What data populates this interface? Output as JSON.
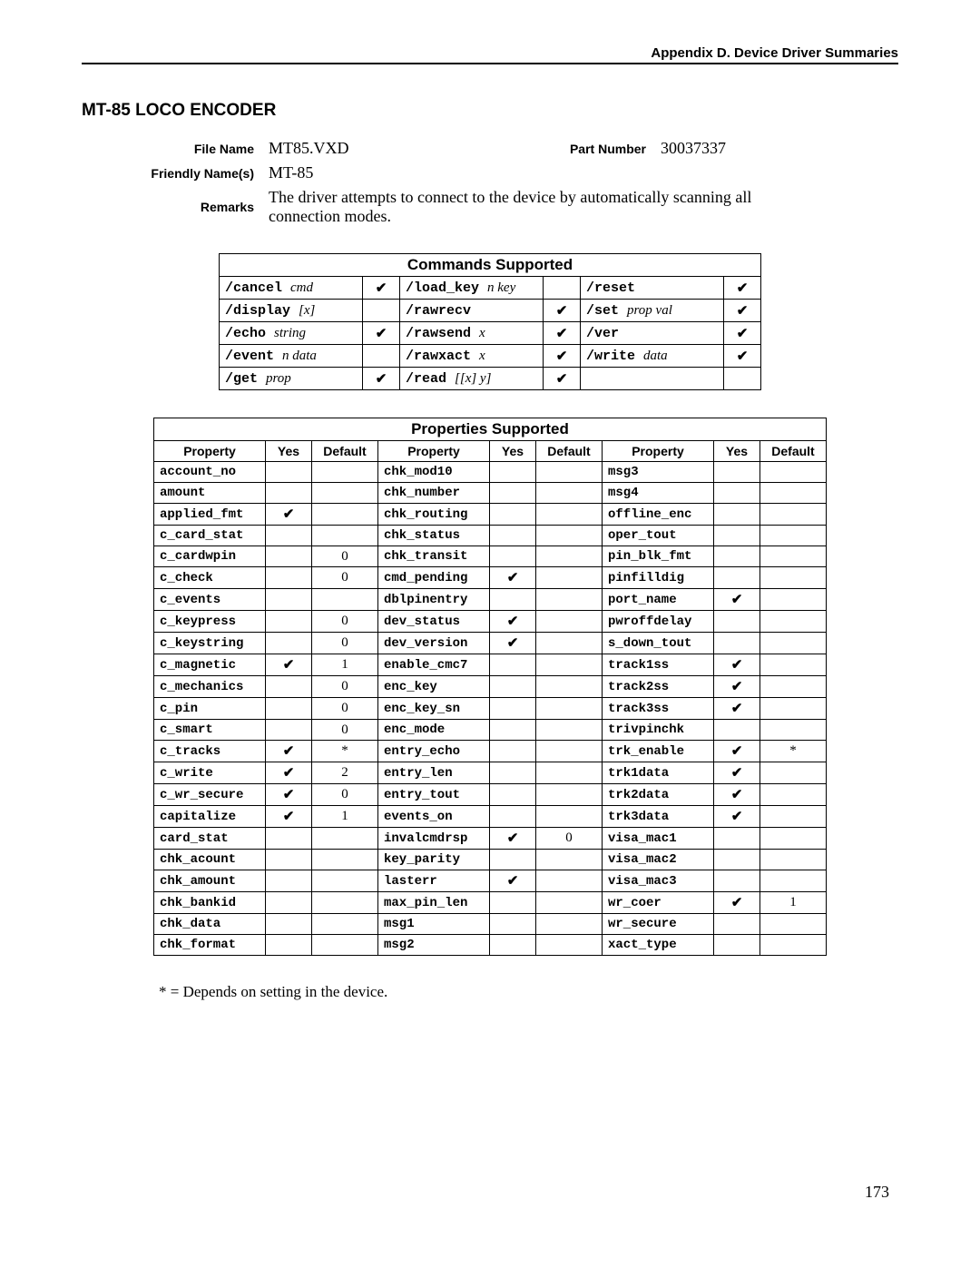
{
  "header": {
    "appendix": "Appendix D.  Device Driver Summaries"
  },
  "section_title": "MT-85 LOCO ENCODER",
  "info": {
    "file_name_label": "File Name",
    "file_name": "MT85.VXD",
    "part_number_label": "Part Number",
    "part_number": "30037337",
    "friendly_label": "Friendly Name(s)",
    "friendly": "MT-85",
    "remarks_label": "Remarks",
    "remarks": "The driver attempts to connect to the device by automatically scanning all connection modes."
  },
  "commands_table": {
    "title": "Commands Supported",
    "rows": [
      [
        {
          "cmd": "/cancel",
          "arg": "cmd",
          "chk": true
        },
        {
          "cmd": "/load_key",
          "arg": "n key",
          "chk": false
        },
        {
          "cmd": "/reset",
          "arg": "",
          "chk": true
        }
      ],
      [
        {
          "cmd": "/display",
          "arg": "[x]",
          "chk": false
        },
        {
          "cmd": "/rawrecv",
          "arg": "",
          "chk": true
        },
        {
          "cmd": "/set",
          "arg": "prop val",
          "chk": true
        }
      ],
      [
        {
          "cmd": "/echo",
          "arg": "string",
          "chk": true
        },
        {
          "cmd": "/rawsend",
          "arg": "x",
          "chk": true
        },
        {
          "cmd": "/ver",
          "arg": "",
          "chk": true
        }
      ],
      [
        {
          "cmd": "/event",
          "arg": "n data",
          "chk": false
        },
        {
          "cmd": "/rawxact",
          "arg": "x",
          "chk": true
        },
        {
          "cmd": "/write",
          "arg": "data",
          "chk": true
        }
      ],
      [
        {
          "cmd": "/get",
          "arg": "prop",
          "chk": true
        },
        {
          "cmd": "/read",
          "arg": "[[x] y]",
          "chk": true
        },
        {
          "cmd": "",
          "arg": "",
          "chk": null
        }
      ]
    ]
  },
  "props_table": {
    "title": "Properties Supported",
    "headers": {
      "prop": "Property",
      "yes": "Yes",
      "def": "Default"
    },
    "rows": [
      [
        {
          "p": "account_no",
          "y": false,
          "d": ""
        },
        {
          "p": "chk_mod10",
          "y": false,
          "d": ""
        },
        {
          "p": "msg3",
          "y": false,
          "d": ""
        }
      ],
      [
        {
          "p": "amount",
          "y": false,
          "d": ""
        },
        {
          "p": "chk_number",
          "y": false,
          "d": ""
        },
        {
          "p": "msg4",
          "y": false,
          "d": ""
        }
      ],
      [
        {
          "p": "applied_fmt",
          "y": true,
          "d": ""
        },
        {
          "p": "chk_routing",
          "y": false,
          "d": ""
        },
        {
          "p": "offline_enc",
          "y": false,
          "d": ""
        }
      ],
      [
        {
          "p": "c_card_stat",
          "y": false,
          "d": ""
        },
        {
          "p": "chk_status",
          "y": false,
          "d": ""
        },
        {
          "p": "oper_tout",
          "y": false,
          "d": ""
        }
      ],
      [
        {
          "p": "c_cardwpin",
          "y": false,
          "d": "0"
        },
        {
          "p": "chk_transit",
          "y": false,
          "d": ""
        },
        {
          "p": "pin_blk_fmt",
          "y": false,
          "d": ""
        }
      ],
      [
        {
          "p": "c_check",
          "y": false,
          "d": "0"
        },
        {
          "p": "cmd_pending",
          "y": true,
          "d": ""
        },
        {
          "p": "pinfilldig",
          "y": false,
          "d": ""
        }
      ],
      [
        {
          "p": "c_events",
          "y": false,
          "d": ""
        },
        {
          "p": "dblpinentry",
          "y": false,
          "d": ""
        },
        {
          "p": "port_name",
          "y": true,
          "d": ""
        }
      ],
      [
        {
          "p": "c_keypress",
          "y": false,
          "d": "0"
        },
        {
          "p": "dev_status",
          "y": true,
          "d": ""
        },
        {
          "p": "pwroffdelay",
          "y": false,
          "d": ""
        }
      ],
      [
        {
          "p": "c_keystring",
          "y": false,
          "d": "0"
        },
        {
          "p": "dev_version",
          "y": true,
          "d": ""
        },
        {
          "p": "s_down_tout",
          "y": false,
          "d": ""
        }
      ],
      [
        {
          "p": "c_magnetic",
          "y": true,
          "d": "1"
        },
        {
          "p": "enable_cmc7",
          "y": false,
          "d": ""
        },
        {
          "p": "track1ss",
          "y": true,
          "d": ""
        }
      ],
      [
        {
          "p": "c_mechanics",
          "y": false,
          "d": "0"
        },
        {
          "p": "enc_key",
          "y": false,
          "d": ""
        },
        {
          "p": "track2ss",
          "y": true,
          "d": ""
        }
      ],
      [
        {
          "p": "c_pin",
          "y": false,
          "d": "0"
        },
        {
          "p": "enc_key_sn",
          "y": false,
          "d": ""
        },
        {
          "p": "track3ss",
          "y": true,
          "d": ""
        }
      ],
      [
        {
          "p": "c_smart",
          "y": false,
          "d": "0"
        },
        {
          "p": "enc_mode",
          "y": false,
          "d": ""
        },
        {
          "p": "trivpinchk",
          "y": false,
          "d": ""
        }
      ],
      [
        {
          "p": "c_tracks",
          "y": true,
          "d": "*"
        },
        {
          "p": "entry_echo",
          "y": false,
          "d": ""
        },
        {
          "p": "trk_enable",
          "y": true,
          "d": "*"
        }
      ],
      [
        {
          "p": "c_write",
          "y": true,
          "d": "2"
        },
        {
          "p": "entry_len",
          "y": false,
          "d": ""
        },
        {
          "p": "trk1data",
          "y": true,
          "d": ""
        }
      ],
      [
        {
          "p": "c_wr_secure",
          "y": true,
          "d": "0"
        },
        {
          "p": "entry_tout",
          "y": false,
          "d": ""
        },
        {
          "p": "trk2data",
          "y": true,
          "d": ""
        }
      ],
      [
        {
          "p": "capitalize",
          "y": true,
          "d": "1"
        },
        {
          "p": "events_on",
          "y": false,
          "d": ""
        },
        {
          "p": "trk3data",
          "y": true,
          "d": ""
        }
      ],
      [
        {
          "p": "card_stat",
          "y": false,
          "d": ""
        },
        {
          "p": "invalcmdrsp",
          "y": true,
          "d": "0"
        },
        {
          "p": "visa_mac1",
          "y": false,
          "d": ""
        }
      ],
      [
        {
          "p": "chk_acount",
          "y": false,
          "d": ""
        },
        {
          "p": "key_parity",
          "y": false,
          "d": ""
        },
        {
          "p": "visa_mac2",
          "y": false,
          "d": ""
        }
      ],
      [
        {
          "p": "chk_amount",
          "y": false,
          "d": ""
        },
        {
          "p": "lasterr",
          "y": true,
          "d": ""
        },
        {
          "p": "visa_mac3",
          "y": false,
          "d": ""
        }
      ],
      [
        {
          "p": "chk_bankid",
          "y": false,
          "d": ""
        },
        {
          "p": "max_pin_len",
          "y": false,
          "d": ""
        },
        {
          "p": "wr_coer",
          "y": true,
          "d": "1"
        }
      ],
      [
        {
          "p": "chk_data",
          "y": false,
          "d": ""
        },
        {
          "p": "msg1",
          "y": false,
          "d": ""
        },
        {
          "p": "wr_secure",
          "y": false,
          "d": ""
        }
      ],
      [
        {
          "p": "chk_format",
          "y": false,
          "d": ""
        },
        {
          "p": "msg2",
          "y": false,
          "d": ""
        },
        {
          "p": "xact_type",
          "y": false,
          "d": ""
        }
      ]
    ]
  },
  "footnote": "* = Depends on setting in the device.",
  "page_number": "173",
  "checkmark": "✔"
}
